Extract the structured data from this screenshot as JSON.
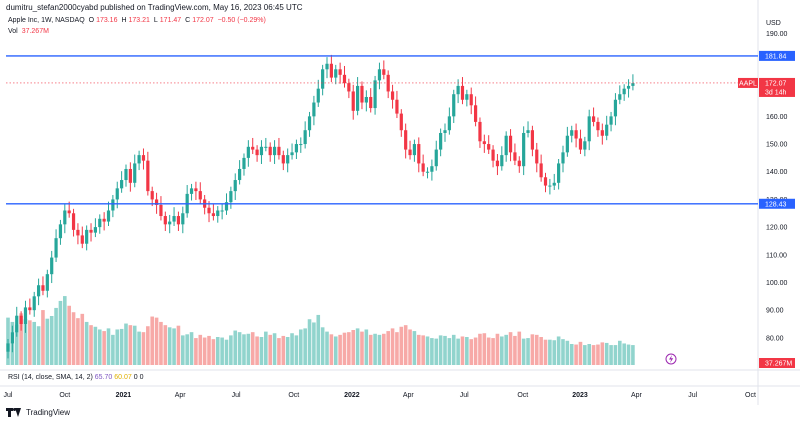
{
  "header": {
    "publisher_line": "dumitru_stefan2000cyabd published on TradingView.com, May 16, 2023 06:45 UTC"
  },
  "legend": {
    "symbol_line": "Apple Inc, 1W, NASDAQ",
    "o_label": "O",
    "o_value": "173.16",
    "h_label": "H",
    "h_value": "173.21",
    "l_label": "L",
    "l_value": "171.47",
    "c_label": "C",
    "c_value": "172.07",
    "change": "−0.50 (−0.29%)",
    "vol_label": "Vol",
    "vol_value": "37.267M"
  },
  "rsi": {
    "label": "RSI (14, close, SMA, 14, 2)",
    "value1": "65.70",
    "value2": "60.07",
    "value3": "0",
    "value4": "0"
  },
  "footer": {
    "brand": "TradingView"
  },
  "colors": {
    "up": "#26a69a",
    "down": "#f23645",
    "up_vol": "#91d4cd",
    "down_vol": "#f7a9a7",
    "level_line": "#2962ff",
    "price_line": "#f23645"
  },
  "chart_data": {
    "type": "candlestick",
    "currency": "USD",
    "y_ticks": [
      80,
      90,
      100,
      110,
      120,
      130,
      140,
      150,
      160,
      170,
      190
    ],
    "ylim": [
      72,
      193
    ],
    "x_ticks": [
      {
        "label": "Jul",
        "t": 0,
        "bold": false
      },
      {
        "label": "Oct",
        "t": 13,
        "bold": false
      },
      {
        "label": "2021",
        "t": 26.4,
        "bold": true
      },
      {
        "label": "Apr",
        "t": 39.4,
        "bold": false
      },
      {
        "label": "Jul",
        "t": 52.2,
        "bold": false
      },
      {
        "label": "Oct",
        "t": 65.4,
        "bold": false
      },
      {
        "label": "2022",
        "t": 78.7,
        "bold": true
      },
      {
        "label": "Apr",
        "t": 91.6,
        "bold": false
      },
      {
        "label": "Jul",
        "t": 104.4,
        "bold": false
      },
      {
        "label": "Oct",
        "t": 117.8,
        "bold": false
      },
      {
        "label": "2023",
        "t": 130.9,
        "bold": true
      },
      {
        "label": "Apr",
        "t": 143.8,
        "bold": false
      },
      {
        "label": "Jul",
        "t": 156.7,
        "bold": false
      },
      {
        "label": "Oct",
        "t": 169.9,
        "bold": false
      }
    ],
    "horizontal_levels": [
      {
        "value": 181.84,
        "label": "181.84"
      },
      {
        "value": 128.43,
        "label": "128.43"
      }
    ],
    "last_price": {
      "value": 172.07,
      "symbol": "AAPL",
      "price_label": "172.07",
      "countdown": "3d 14h"
    },
    "volume_label": "37.267M",
    "closes": [
      78,
      82,
      88,
      85,
      91,
      90,
      95,
      99,
      97,
      103,
      109,
      116,
      121,
      126,
      125,
      119,
      117,
      114,
      119,
      118,
      120,
      123,
      122,
      126,
      130,
      134,
      137,
      141,
      136,
      143,
      146,
      144,
      133,
      130,
      128,
      124,
      121,
      122,
      124,
      121,
      125,
      132,
      134,
      133,
      130,
      127,
      125,
      124,
      126,
      126,
      129,
      133,
      137,
      141,
      145,
      149,
      148,
      146,
      149,
      149,
      146,
      149,
      146,
      143,
      146,
      147,
      150,
      150,
      155,
      160,
      165,
      170,
      177,
      179,
      174,
      177,
      175,
      172,
      169,
      162,
      171,
      165,
      167,
      163,
      173,
      177,
      175,
      169,
      166,
      161,
      155,
      148,
      146,
      150,
      143,
      140,
      140,
      142,
      148,
      154,
      155,
      160,
      168,
      171,
      166,
      168,
      164,
      158,
      151,
      150,
      148,
      144,
      142,
      146,
      153,
      147,
      144,
      142,
      154,
      155,
      148,
      143,
      138,
      135,
      135,
      136,
      143,
      147,
      153,
      155,
      152,
      148,
      151,
      160,
      158,
      155,
      153,
      157,
      160,
      166,
      168,
      170,
      171,
      172
    ],
    "opens_first": 75,
    "volume_max": 130,
    "volumes": [
      88,
      80,
      75,
      96,
      85,
      83,
      80,
      72,
      102,
      86,
      91,
      106,
      119,
      128,
      110,
      98,
      87,
      95,
      80,
      74,
      71,
      66,
      63,
      68,
      56,
      66,
      67,
      77,
      74,
      73,
      62,
      61,
      72,
      90,
      88,
      80,
      74,
      70,
      68,
      73,
      55,
      57,
      61,
      50,
      56,
      51,
      54,
      48,
      52,
      51,
      47,
      55,
      64,
      61,
      57,
      58,
      61,
      53,
      52,
      62,
      56,
      59,
      50,
      54,
      52,
      59,
      55,
      66,
      68,
      85,
      79,
      93,
      70,
      62,
      57,
      53,
      56,
      60,
      61,
      65,
      68,
      62,
      66,
      56,
      58,
      56,
      58,
      63,
      68,
      61,
      71,
      74,
      66,
      63,
      56,
      55,
      53,
      50,
      49,
      55,
      54,
      50,
      56,
      49,
      53,
      52,
      48,
      51,
      58,
      59,
      51,
      50,
      58,
      53,
      56,
      61,
      54,
      62,
      49,
      50,
      57,
      56,
      52,
      47,
      47,
      46,
      53,
      48,
      45,
      39,
      38,
      43,
      37,
      39,
      37,
      38,
      42,
      41,
      37,
      37,
      45,
      40,
      38,
      37
    ]
  }
}
